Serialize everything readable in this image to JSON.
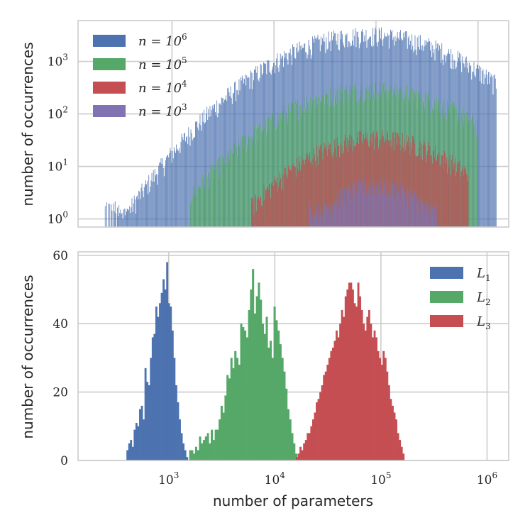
{
  "chart_data": [
    {
      "type": "bar",
      "subtype": "histogram",
      "title": "",
      "xlabel": "",
      "ylabel": "number of occurrences",
      "xscale": "log",
      "yscale": "log",
      "xlim": [
        120,
        2000000
      ],
      "ylim": [
        0.7,
        6000
      ],
      "yticks": [
        {
          "value": 1,
          "base": "10",
          "exp": "0"
        },
        {
          "value": 10,
          "base": "10",
          "exp": "1"
        },
        {
          "value": 100,
          "base": "10",
          "exp": "2"
        },
        {
          "value": 1000,
          "base": "10",
          "exp": "3"
        }
      ],
      "xgrid": [
        1000,
        10000,
        100000,
        1000000
      ],
      "legend_position": "top-left",
      "series": [
        {
          "name": "n = 10^6",
          "label_main": "n = 10",
          "label_exp": "6",
          "color": "#4c72b0",
          "peak_x": 85000,
          "peak_count": 3200,
          "x_min": 220,
          "x_max": 1500000,
          "spread_decades": 0.6
        },
        {
          "name": "n = 10^5",
          "label_main": "n = 10",
          "label_exp": "5",
          "color": "#55a868",
          "peak_x": 90000,
          "peak_count": 300,
          "x_min": 1500,
          "x_max": 1000000,
          "spread_decades": 0.58
        },
        {
          "name": "n = 10^4",
          "label_main": "n = 10",
          "label_exp": "4",
          "color": "#c44e52",
          "peak_x": 100000,
          "peak_count": 35,
          "x_min": 6000,
          "x_max": 800000,
          "spread_decades": 0.5
        },
        {
          "name": "n = 10^3",
          "label_main": "n = 10",
          "label_exp": "3",
          "color": "#8172b2",
          "peak_x": 100000,
          "peak_count": 4.5,
          "x_min": 22000,
          "x_max": 400000,
          "spread_decades": 0.35
        }
      ]
    },
    {
      "type": "bar",
      "subtype": "histogram",
      "title": "",
      "xlabel": "number of parameters",
      "ylabel": "number of occurrences",
      "xscale": "log",
      "ylim": [
        0,
        61
      ],
      "xlim": [
        140,
        1600000
      ],
      "yticks": [
        0,
        20,
        40,
        60
      ],
      "xticks": [
        {
          "value": 1000,
          "base": "10",
          "exp": "3"
        },
        {
          "value": 10000,
          "base": "10",
          "exp": "4"
        },
        {
          "value": 100000,
          "base": "10",
          "exp": "5"
        },
        {
          "value": 1000000,
          "base": "10",
          "exp": "6"
        }
      ],
      "legend_position": "top-right",
      "series": [
        {
          "name": "L_1",
          "label_main": "L",
          "label_sub": "1",
          "color": "#4c72b0",
          "bin_start": 400,
          "bin_ratio": 1.04,
          "values": [
            3,
            5,
            6,
            4,
            9,
            11,
            10,
            15,
            16,
            12,
            27,
            23,
            22,
            30,
            36,
            37,
            45,
            42,
            46,
            49,
            53,
            50,
            58,
            46,
            45,
            38,
            30,
            22,
            17,
            12,
            8,
            5,
            3,
            1
          ]
        },
        {
          "name": "L_2",
          "label_main": "L",
          "label_sub": "2",
          "color": "#55a868",
          "bin_start": 1560,
          "bin_ratio": 1.0435,
          "values": [
            3,
            3,
            2,
            4,
            3,
            7,
            5,
            6,
            7,
            8,
            5,
            9,
            6,
            9,
            9,
            12,
            16,
            14,
            19,
            25,
            24,
            30,
            27,
            32,
            30,
            28,
            40,
            39,
            38,
            36,
            44,
            50,
            56,
            43,
            48,
            52,
            47,
            40,
            37,
            42,
            33,
            35,
            30,
            45,
            41,
            38,
            34,
            30,
            26,
            21,
            15,
            12,
            8,
            5,
            2,
            1
          ]
        },
        {
          "name": "L_3",
          "label_main": "L",
          "label_sub": "3",
          "color": "#c44e52",
          "bin_start": 15800,
          "bin_ratio": 1.04,
          "values": [
            1,
            2,
            4,
            3,
            5,
            6,
            8,
            8,
            10,
            12,
            14,
            17,
            18,
            20,
            22,
            25,
            26,
            28,
            30,
            32,
            33,
            35,
            38,
            36,
            40,
            44,
            42,
            48,
            50,
            52,
            52,
            50,
            46,
            45,
            52,
            48,
            44,
            40,
            38,
            42,
            44,
            40,
            36,
            38,
            36,
            32,
            30,
            28,
            32,
            30,
            26,
            22,
            18,
            16,
            14,
            12,
            8,
            6,
            4,
            2
          ]
        }
      ]
    }
  ]
}
